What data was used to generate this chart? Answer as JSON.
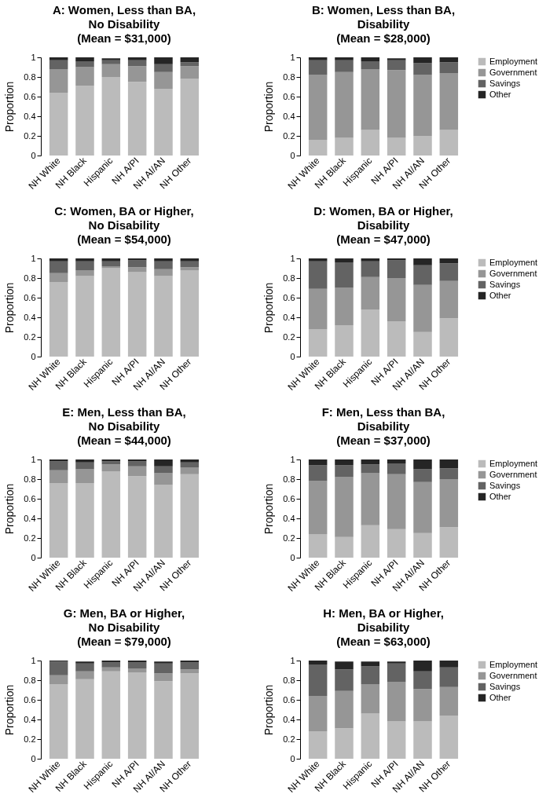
{
  "chart_data": [
    {
      "type": "bar",
      "stacked": true,
      "title": "A: Women, Less than BA,\nNo Disability\n(Mean = $31,000)",
      "ylabel": "Proportion",
      "categories": [
        "NH White",
        "NH Black",
        "Hispanic",
        "NH A/PI",
        "NH AI/AN",
        "NH Other"
      ],
      "ylim": [
        0,
        1
      ],
      "yticks": [
        0,
        0.2,
        0.4,
        0.6,
        0.8,
        1
      ],
      "legend": false,
      "grid": false,
      "series": [
        {
          "color": "#bbbbbb",
          "values": [
            0.64,
            0.71,
            0.8,
            0.75,
            0.68,
            0.78
          ]
        },
        {
          "color": "#969696",
          "values": [
            0.24,
            0.19,
            0.13,
            0.16,
            0.17,
            0.13
          ]
        },
        {
          "color": "#636363",
          "values": [
            0.09,
            0.06,
            0.04,
            0.06,
            0.08,
            0.04
          ]
        },
        {
          "color": "#252525",
          "values": [
            0.03,
            0.04,
            0.02,
            0.03,
            0.07,
            0.05
          ]
        }
      ]
    },
    {
      "type": "bar",
      "stacked": true,
      "title": "B: Women, Less than BA,\nDisability\n(Mean = $28,000)",
      "ylabel": "Proportion",
      "categories": [
        "NH White",
        "NH Black",
        "Hispanic",
        "NH A/PI",
        "NH AI/AN",
        "NH Other"
      ],
      "ylim": [
        0,
        1
      ],
      "yticks": [
        0,
        0.2,
        0.4,
        0.6,
        0.8,
        1
      ],
      "legend": "right",
      "grid": false,
      "series": [
        {
          "name": "Employment",
          "color": "#bbbbbb",
          "values": [
            0.16,
            0.18,
            0.26,
            0.18,
            0.2,
            0.26
          ]
        },
        {
          "name": "Government",
          "color": "#969696",
          "values": [
            0.66,
            0.67,
            0.62,
            0.69,
            0.62,
            0.58
          ]
        },
        {
          "name": "Savings",
          "color": "#636363",
          "values": [
            0.15,
            0.12,
            0.08,
            0.1,
            0.12,
            0.11
          ]
        },
        {
          "name": "Other",
          "color": "#252525",
          "values": [
            0.03,
            0.03,
            0.04,
            0.02,
            0.06,
            0.05
          ]
        }
      ]
    },
    {
      "type": "bar",
      "stacked": true,
      "title": "C: Women, BA or Higher,\nNo Disability\n(Mean = $54,000)",
      "ylabel": "Proportion",
      "categories": [
        "NH White",
        "NH Black",
        "Hispanic",
        "NH A/PI",
        "NH AI/AN",
        "NH Other"
      ],
      "ylim": [
        0,
        1
      ],
      "yticks": [
        0,
        0.2,
        0.4,
        0.6,
        0.8,
        1
      ],
      "legend": false,
      "grid": false,
      "series": [
        {
          "color": "#bbbbbb",
          "values": [
            0.76,
            0.82,
            0.9,
            0.86,
            0.82,
            0.88
          ]
        },
        {
          "color": "#969696",
          "values": [
            0.09,
            0.06,
            0.02,
            0.05,
            0.07,
            0.03
          ]
        },
        {
          "color": "#636363",
          "values": [
            0.12,
            0.09,
            0.05,
            0.07,
            0.08,
            0.06
          ]
        },
        {
          "color": "#252525",
          "values": [
            0.03,
            0.03,
            0.03,
            0.02,
            0.03,
            0.03
          ]
        }
      ]
    },
    {
      "type": "bar",
      "stacked": true,
      "title": "D: Women, BA or Higher,\nDisability\n(Mean = $47,000)",
      "ylabel": "Proportion",
      "categories": [
        "NH White",
        "NH Black",
        "Hispanic",
        "NH A/PI",
        "NH AI/AN",
        "NH Other"
      ],
      "ylim": [
        0,
        1
      ],
      "yticks": [
        0,
        0.2,
        0.4,
        0.6,
        0.8,
        1
      ],
      "legend": "right",
      "grid": false,
      "series": [
        {
          "name": "Employment",
          "color": "#bbbbbb",
          "values": [
            0.28,
            0.32,
            0.48,
            0.36,
            0.25,
            0.39
          ]
        },
        {
          "name": "Government",
          "color": "#969696",
          "values": [
            0.41,
            0.38,
            0.33,
            0.44,
            0.48,
            0.38
          ]
        },
        {
          "name": "Savings",
          "color": "#636363",
          "values": [
            0.28,
            0.26,
            0.16,
            0.18,
            0.2,
            0.18
          ]
        },
        {
          "name": "Other",
          "color": "#252525",
          "values": [
            0.03,
            0.04,
            0.03,
            0.02,
            0.07,
            0.05
          ]
        }
      ]
    },
    {
      "type": "bar",
      "stacked": true,
      "title": "E: Men, Less than BA,\nNo Disability\n(Mean = $44,000)",
      "ylabel": "Proportion",
      "categories": [
        "NH White",
        "NH Black",
        "Hispanic",
        "NH A/PI",
        "NH AI/AN",
        "NH Other"
      ],
      "ylim": [
        0,
        1
      ],
      "yticks": [
        0,
        0.2,
        0.4,
        0.6,
        0.8,
        1
      ],
      "legend": false,
      "grid": false,
      "series": [
        {
          "color": "#bbbbbb",
          "values": [
            0.76,
            0.76,
            0.88,
            0.83,
            0.74,
            0.85
          ]
        },
        {
          "color": "#969696",
          "values": [
            0.13,
            0.14,
            0.07,
            0.1,
            0.12,
            0.07
          ]
        },
        {
          "color": "#636363",
          "values": [
            0.09,
            0.07,
            0.03,
            0.05,
            0.07,
            0.05
          ]
        },
        {
          "color": "#252525",
          "values": [
            0.02,
            0.03,
            0.02,
            0.02,
            0.07,
            0.03
          ]
        }
      ]
    },
    {
      "type": "bar",
      "stacked": true,
      "title": "F: Men, Less than BA,\nDisability\n(Mean = $37,000)",
      "ylabel": "Proportion",
      "categories": [
        "NH White",
        "NH Black",
        "Hispanic",
        "NH A/PI",
        "NH AI/AN",
        "NH Other"
      ],
      "ylim": [
        0,
        1
      ],
      "yticks": [
        0,
        0.2,
        0.4,
        0.6,
        0.8,
        1
      ],
      "legend": "right",
      "grid": false,
      "series": [
        {
          "name": "Employment",
          "color": "#bbbbbb",
          "values": [
            0.24,
            0.21,
            0.33,
            0.29,
            0.25,
            0.31
          ]
        },
        {
          "name": "Government",
          "color": "#969696",
          "values": [
            0.54,
            0.61,
            0.53,
            0.56,
            0.52,
            0.49
          ]
        },
        {
          "name": "Savings",
          "color": "#636363",
          "values": [
            0.16,
            0.12,
            0.09,
            0.11,
            0.13,
            0.11
          ]
        },
        {
          "name": "Other",
          "color": "#252525",
          "values": [
            0.06,
            0.06,
            0.05,
            0.04,
            0.1,
            0.09
          ]
        }
      ]
    },
    {
      "type": "bar",
      "stacked": true,
      "title": "G: Men, BA or Higher,\nNo Disability\n(Mean = $79,000)",
      "ylabel": "Proportion",
      "categories": [
        "NH White",
        "NH Black",
        "Hispanic",
        "NH A/PI",
        "NH AI/AN",
        "NH Other"
      ],
      "ylim": [
        0,
        1
      ],
      "yticks": [
        0,
        0.2,
        0.4,
        0.6,
        0.8,
        1
      ],
      "legend": false,
      "grid": false,
      "series": [
        {
          "color": "#bbbbbb",
          "values": [
            0.76,
            0.81,
            0.89,
            0.88,
            0.79,
            0.87
          ]
        },
        {
          "color": "#969696",
          "values": [
            0.09,
            0.08,
            0.04,
            0.04,
            0.08,
            0.04
          ]
        },
        {
          "color": "#636363",
          "values": [
            0.14,
            0.08,
            0.05,
            0.06,
            0.1,
            0.07
          ]
        },
        {
          "color": "#252525",
          "values": [
            0.01,
            0.02,
            0.02,
            0.02,
            0.02,
            0.02
          ]
        }
      ]
    },
    {
      "type": "bar",
      "stacked": true,
      "title": "H: Men, BA or Higher,\nDisability\n(Mean = $63,000)",
      "ylabel": "Proportion",
      "categories": [
        "NH White",
        "NH Black",
        "Hispanic",
        "NH A/PI",
        "NH AI/AN",
        "NH Other"
      ],
      "ylim": [
        0,
        1
      ],
      "yticks": [
        0,
        0.2,
        0.4,
        0.6,
        0.8,
        1
      ],
      "legend": "right",
      "grid": false,
      "series": [
        {
          "name": "Employment",
          "color": "#bbbbbb",
          "values": [
            0.28,
            0.31,
            0.46,
            0.38,
            0.38,
            0.44
          ]
        },
        {
          "name": "Government",
          "color": "#969696",
          "values": [
            0.36,
            0.38,
            0.3,
            0.4,
            0.33,
            0.29
          ]
        },
        {
          "name": "Savings",
          "color": "#636363",
          "values": [
            0.32,
            0.22,
            0.18,
            0.19,
            0.18,
            0.2
          ]
        },
        {
          "name": "Other",
          "color": "#252525",
          "values": [
            0.04,
            0.08,
            0.05,
            0.02,
            0.11,
            0.07
          ]
        }
      ]
    }
  ]
}
